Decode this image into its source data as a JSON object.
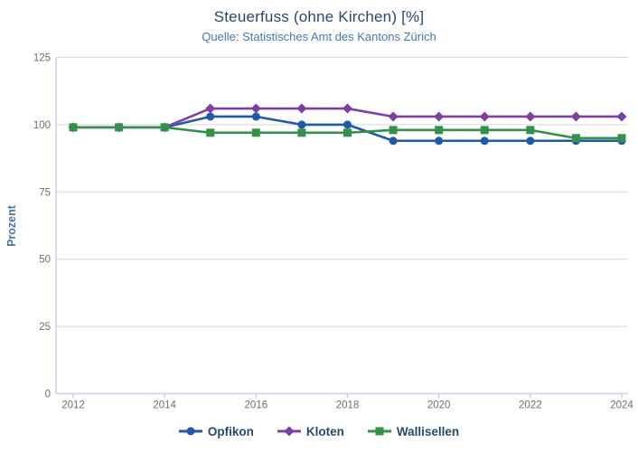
{
  "title": "Steuerfuss (ohne Kirchen) [%]",
  "subtitle": "Quelle: Statistisches Amt des Kantons Zürich",
  "y_axis_title": "Prozent",
  "colors": {
    "title_text": "#27496d",
    "subtitle_text": "#4478a8",
    "axis_label_text": "#4377a6",
    "tick_text": "#6e6e6e",
    "gridline": "#d8d8d8",
    "axis_line": "#c5d3e6",
    "legend_text": "#26496d"
  },
  "chart_data": {
    "type": "line",
    "title": "Steuerfuss (ohne Kirchen) [%]",
    "subtitle": "Quelle: Statistisches Amt des Kantons Zürich",
    "xlabel": "",
    "ylabel": "Prozent",
    "ylim": [
      0,
      125
    ],
    "yticks": [
      0,
      25,
      50,
      75,
      100,
      125
    ],
    "xticks": [
      2012,
      2014,
      2016,
      2018,
      2020,
      2022,
      2024
    ],
    "grid": true,
    "legend_position": "bottom",
    "x": [
      2012,
      2013,
      2014,
      2015,
      2016,
      2017,
      2018,
      2019,
      2020,
      2021,
      2022,
      2023,
      2024
    ],
    "series": [
      {
        "name": "Opfikon",
        "marker": "circle",
        "color": "#1e5aa8",
        "values": [
          99,
          99,
          99,
          103,
          103,
          100,
          100,
          94,
          94,
          94,
          94,
          94,
          94
        ]
      },
      {
        "name": "Kloten",
        "marker": "diamond",
        "color": "#7e3fa4",
        "values": [
          99,
          99,
          99,
          106,
          106,
          106,
          106,
          103,
          103,
          103,
          103,
          103,
          103
        ]
      },
      {
        "name": "Wallisellen",
        "marker": "square",
        "color": "#33914c",
        "values": [
          99,
          99,
          99,
          97,
          97,
          97,
          97,
          98,
          98,
          98,
          98,
          95,
          95
        ]
      }
    ]
  }
}
